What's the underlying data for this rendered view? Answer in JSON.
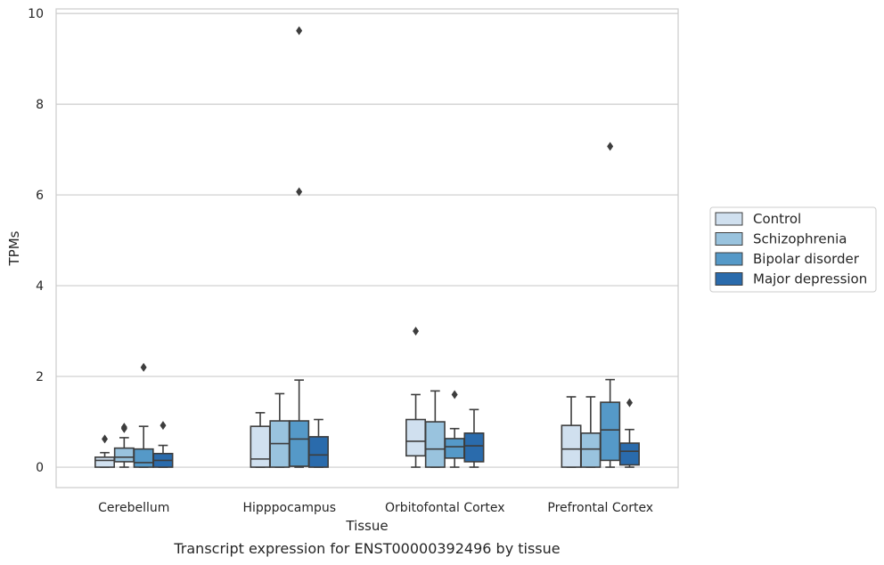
{
  "caption": "Transcript expression for ENST00000392496 by tissue",
  "chart_data": {
    "type": "box",
    "title": "",
    "xlabel": "Tissue",
    "ylabel": "TPMs",
    "ylim": [
      -0.45,
      10.1
    ],
    "yticks": [
      0,
      2,
      4,
      6,
      8,
      10
    ],
    "grid": "horizontal",
    "legend_position": "right",
    "categories": [
      "Cerebellum",
      "Hipppocampus",
      "Orbitofontal Cortex",
      "Prefrontal Cortex"
    ],
    "series": [
      {
        "name": "Control",
        "color": "#d0e0ef",
        "boxes": [
          {
            "whislo": 0,
            "q1": 0,
            "med": 0.15,
            "q3": 0.22,
            "whishi": 0.32,
            "fliers": [
              0.62
            ]
          },
          {
            "whislo": 0,
            "q1": 0,
            "med": 0.18,
            "q3": 0.9,
            "whishi": 1.2,
            "fliers": []
          },
          {
            "whislo": 0,
            "q1": 0.25,
            "med": 0.57,
            "q3": 1.05,
            "whishi": 1.6,
            "fliers": [
              3.0
            ]
          },
          {
            "whislo": 0,
            "q1": 0,
            "med": 0.4,
            "q3": 0.92,
            "whishi": 1.55,
            "fliers": []
          }
        ]
      },
      {
        "name": "Schizophrenia",
        "color": "#99c3de",
        "boxes": [
          {
            "whislo": 0,
            "q1": 0.12,
            "med": 0.22,
            "q3": 0.42,
            "whishi": 0.65,
            "fliers": [
              0.85,
              0.88
            ]
          },
          {
            "whislo": 0,
            "q1": 0,
            "med": 0.52,
            "q3": 1.02,
            "whishi": 1.62,
            "fliers": []
          },
          {
            "whislo": 0,
            "q1": 0,
            "med": 0.4,
            "q3": 1.0,
            "whishi": 1.68,
            "fliers": []
          },
          {
            "whislo": 0,
            "q1": 0,
            "med": 0.4,
            "q3": 0.75,
            "whishi": 1.55,
            "fliers": []
          }
        ]
      },
      {
        "name": "Bipolar disorder",
        "color": "#5599c8",
        "boxes": [
          {
            "whislo": 0,
            "q1": 0,
            "med": 0.1,
            "q3": 0.4,
            "whishi": 0.9,
            "fliers": [
              2.2
            ]
          },
          {
            "whislo": 0,
            "q1": 0.02,
            "med": 0.62,
            "q3": 1.02,
            "whishi": 1.92,
            "fliers": [
              6.07,
              9.62
            ]
          },
          {
            "whislo": 0,
            "q1": 0.2,
            "med": 0.45,
            "q3": 0.63,
            "whishi": 0.85,
            "fliers": [
              1.6
            ]
          },
          {
            "whislo": 0,
            "q1": 0.15,
            "med": 0.82,
            "q3": 1.43,
            "whishi": 1.93,
            "fliers": [
              7.07
            ]
          }
        ]
      },
      {
        "name": "Major depression",
        "color": "#2a6bac",
        "boxes": [
          {
            "whislo": 0,
            "q1": 0,
            "med": 0.15,
            "q3": 0.3,
            "whishi": 0.48,
            "fliers": [
              0.92
            ]
          },
          {
            "whislo": 0,
            "q1": 0,
            "med": 0.27,
            "q3": 0.67,
            "whishi": 1.05,
            "fliers": []
          },
          {
            "whislo": 0,
            "q1": 0.12,
            "med": 0.47,
            "q3": 0.75,
            "whishi": 1.27,
            "fliers": []
          },
          {
            "whislo": 0,
            "q1": 0.05,
            "med": 0.35,
            "q3": 0.53,
            "whishi": 0.83,
            "fliers": [
              1.42
            ]
          }
        ]
      }
    ]
  }
}
